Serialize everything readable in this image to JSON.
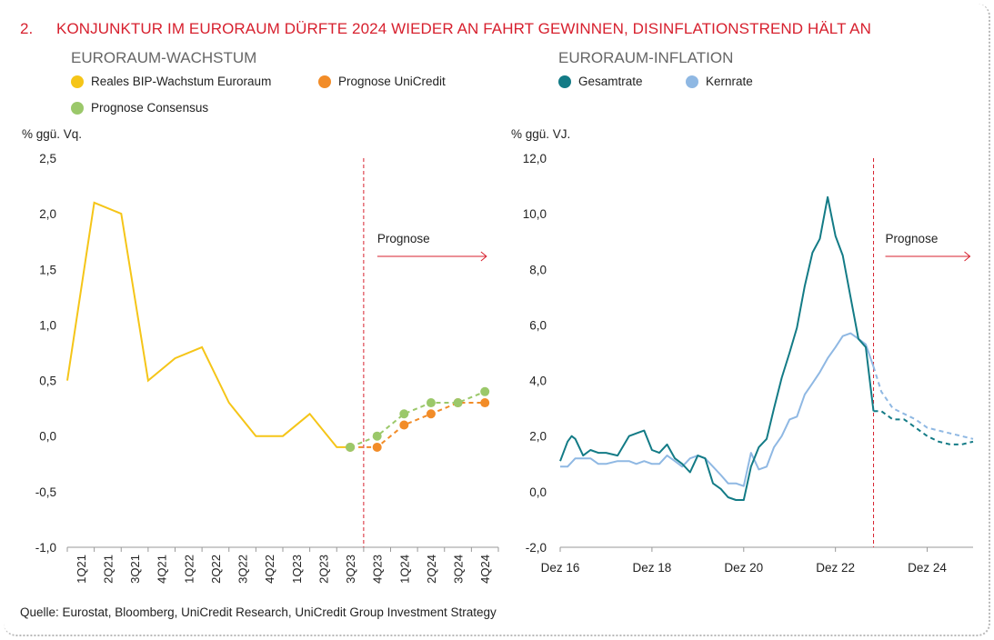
{
  "heading": {
    "number": "2.",
    "title": "KONJUNKTUR IM EURORAUM DÜRFTE 2024 WIEDER AN FAHRT GEWINNEN, DISINFLATIONSTREND HÄLT AN"
  },
  "source": "Quelle: Eurostat, Bloomberg, UniCredit Research, UniCredit Group Investment Strategy",
  "colors": {
    "heading": "#d7202e",
    "gdp": "#f5c518",
    "unicredit": "#f28c28",
    "consensus": "#9bc86a",
    "headline": "#137b86",
    "core": "#8fb8e3",
    "forecast_marker": "#d7202e"
  },
  "chart_data": [
    {
      "type": "line",
      "title": "EURORAUM-WACHSTUM",
      "ylabel": "% ggü. Vq.",
      "ylim": [
        -1.0,
        2.5
      ],
      "yticks": [
        "2,5",
        "2,0",
        "1,5",
        "1,0",
        "0,5",
        "0,0",
        "-0,5",
        "-1,0"
      ],
      "ytick_values": [
        2.5,
        2.0,
        1.5,
        1.0,
        0.5,
        0.0,
        -0.5,
        -1.0
      ],
      "categories": [
        "1Q21",
        "2Q21",
        "3Q21",
        "4Q21",
        "1Q22",
        "2Q22",
        "3Q22",
        "4Q22",
        "1Q23",
        "2Q23",
        "3Q23",
        "4Q23",
        "1Q24",
        "2Q24",
        "3Q24",
        "4Q24"
      ],
      "annotation": "Prognose",
      "forecast_start_index": 10.5,
      "series": [
        {
          "name": "Reales BIP-Wachstum Euroraum",
          "x": [
            -0.5,
            0.5,
            1.5,
            2.5,
            3.5,
            4.5,
            5.5,
            6.5,
            7.5,
            8.5,
            9.5,
            10
          ],
          "values": [
            0.5,
            2.1,
            2.0,
            0.5,
            0.7,
            0.8,
            0.3,
            0.0,
            0.0,
            0.2,
            -0.1,
            -0.1
          ]
        },
        {
          "name": "Prognose UniCredit",
          "x": [
            10,
            11,
            12,
            13,
            14,
            15
          ],
          "values": [
            -0.1,
            -0.1,
            0.1,
            0.2,
            0.3,
            0.3
          ]
        },
        {
          "name": "Prognose Consensus",
          "x": [
            10,
            11,
            12,
            13,
            14,
            15
          ],
          "values": [
            -0.1,
            0.0,
            0.2,
            0.3,
            0.3,
            0.4
          ]
        }
      ]
    },
    {
      "type": "line",
      "title": "EURORAUM-INFLATION",
      "ylabel": "% ggü. VJ.",
      "ylim": [
        -2.0,
        12.0
      ],
      "yticks": [
        "12,0",
        "10,0",
        "8,0",
        "6,0",
        "4,0",
        "2,0",
        "0,0",
        "-2,0"
      ],
      "ytick_values": [
        12,
        10,
        8,
        6,
        4,
        2,
        0,
        -2
      ],
      "x_tick_labels": [
        "Dez 16",
        "Dez 18",
        "Dez 20",
        "Dez 22",
        "Dez 24"
      ],
      "x_tick_values": [
        2016.92,
        2018.92,
        2020.92,
        2022.92,
        2024.92
      ],
      "xlim": [
        2016.92,
        2025.92
      ],
      "annotation": "Prognose",
      "forecast_start": 2023.75,
      "series": [
        {
          "name": "Gesamtrate",
          "x": [
            2016.92,
            2017.08,
            2017.17,
            2017.25,
            2017.42,
            2017.58,
            2017.75,
            2017.92,
            2018.17,
            2018.42,
            2018.58,
            2018.75,
            2018.92,
            2019.08,
            2019.25,
            2019.42,
            2019.58,
            2019.75,
            2019.92,
            2020.08,
            2020.25,
            2020.42,
            2020.58,
            2020.75,
            2020.92,
            2021.08,
            2021.25,
            2021.42,
            2021.58,
            2021.75,
            2021.92,
            2022.08,
            2022.25,
            2022.42,
            2022.58,
            2022.75,
            2022.92,
            2023.08,
            2023.25,
            2023.42,
            2023.58,
            2023.75
          ],
          "values": [
            1.1,
            1.8,
            2.0,
            1.9,
            1.3,
            1.5,
            1.4,
            1.4,
            1.3,
            2.0,
            2.1,
            2.2,
            1.5,
            1.4,
            1.7,
            1.2,
            1.0,
            0.7,
            1.3,
            1.2,
            0.3,
            0.1,
            -0.2,
            -0.3,
            -0.3,
            0.9,
            1.6,
            1.9,
            3.0,
            4.1,
            5.0,
            5.9,
            7.4,
            8.6,
            9.1,
            10.6,
            9.2,
            8.5,
            7.0,
            5.5,
            5.2,
            2.9
          ]
        },
        {
          "name": "Gesamtrate (Prognose)",
          "x": [
            2023.75,
            2023.92,
            2024.17,
            2024.42,
            2024.67,
            2024.92,
            2025.17,
            2025.42,
            2025.67,
            2025.92
          ],
          "values": [
            2.9,
            2.9,
            2.6,
            2.6,
            2.3,
            2.0,
            1.8,
            1.7,
            1.7,
            1.8
          ]
        },
        {
          "name": "Kernrate",
          "x": [
            2016.92,
            2017.08,
            2017.25,
            2017.42,
            2017.58,
            2017.75,
            2017.92,
            2018.17,
            2018.42,
            2018.58,
            2018.75,
            2018.92,
            2019.08,
            2019.25,
            2019.42,
            2019.58,
            2019.75,
            2019.92,
            2020.08,
            2020.25,
            2020.42,
            2020.58,
            2020.75,
            2020.92,
            2021.08,
            2021.25,
            2021.42,
            2021.58,
            2021.75,
            2021.92,
            2022.08,
            2022.25,
            2022.42,
            2022.58,
            2022.75,
            2022.92,
            2023.08,
            2023.25,
            2023.42,
            2023.58,
            2023.75
          ],
          "values": [
            0.9,
            0.9,
            1.2,
            1.2,
            1.2,
            1.0,
            1.0,
            1.1,
            1.1,
            1.0,
            1.1,
            1.0,
            1.0,
            1.3,
            1.1,
            0.9,
            1.2,
            1.3,
            1.2,
            0.9,
            0.6,
            0.3,
            0.3,
            0.2,
            1.4,
            0.8,
            0.9,
            1.6,
            2.0,
            2.6,
            2.7,
            3.5,
            3.9,
            4.3,
            4.8,
            5.2,
            5.6,
            5.7,
            5.5,
            5.3,
            4.5
          ]
        },
        {
          "name": "Kernrate (Prognose)",
          "x": [
            2023.75,
            2023.92,
            2024.17,
            2024.42,
            2024.67,
            2024.92,
            2025.17,
            2025.42,
            2025.67,
            2025.92
          ],
          "values": [
            4.5,
            3.6,
            3.0,
            2.8,
            2.6,
            2.3,
            2.2,
            2.1,
            2.0,
            1.9
          ]
        }
      ]
    }
  ],
  "legend_left": [
    {
      "label": "Reales BIP-Wachstum Euroraum",
      "color": "#f5c518"
    },
    {
      "label": "Prognose UniCredit",
      "color": "#f28c28"
    },
    {
      "label": "Prognose Consensus",
      "color": "#9bc86a"
    }
  ],
  "legend_right": [
    {
      "label": "Gesamtrate",
      "color": "#137b86"
    },
    {
      "label": "Kernrate",
      "color": "#8fb8e3"
    }
  ]
}
